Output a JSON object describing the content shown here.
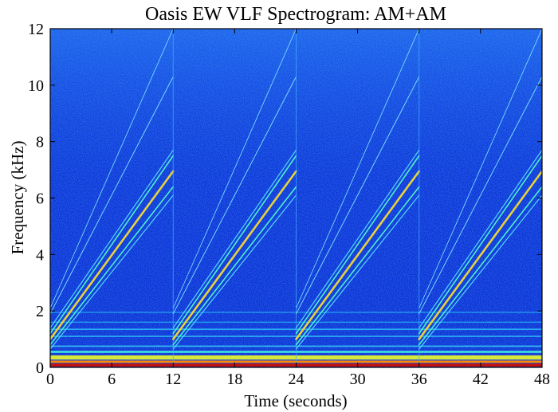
{
  "chart_data": {
    "type": "heatmap",
    "title": "Oasis EW VLF Spectrogram: AM+AM",
    "xlabel": "Time (seconds)",
    "ylabel": "Frequency (kHz)",
    "xlim": [
      0,
      48
    ],
    "ylim": [
      0,
      12
    ],
    "x_ticks": [
      "0",
      "6",
      "12",
      "18",
      "24",
      "30",
      "36",
      "42",
      "48"
    ],
    "y_ticks": [
      "0",
      "2",
      "4",
      "6",
      "8",
      "10",
      "12"
    ],
    "colormap": "jet",
    "background_color": "#0a2fd6",
    "sweep_period_s": 12,
    "sweep_starts_s": [
      0,
      12,
      24,
      36
    ],
    "sweeps": [
      {
        "f_start_khz": 1.0,
        "f_end_khz": 6.95,
        "color": "#e8d23a",
        "width": 2.6
      },
      {
        "f_start_khz": 1.2,
        "f_end_khz": 7.5,
        "color": "#4ff0c8",
        "width": 1.6
      },
      {
        "f_start_khz": 0.8,
        "f_end_khz": 6.4,
        "color": "#4ff0c8",
        "width": 1.6
      },
      {
        "f_start_khz": 1.4,
        "f_end_khz": 7.7,
        "color": "#58e0ff",
        "width": 1.1
      },
      {
        "f_start_khz": 0.65,
        "f_end_khz": 6.1,
        "color": "#58e0ff",
        "width": 1.1
      },
      {
        "f_start_khz": 1.9,
        "f_end_khz": 10.3,
        "color": "#7fe6ff",
        "width": 0.9
      },
      {
        "f_start_khz": 2.1,
        "f_end_khz": 12.0,
        "color": "#7fe6ff",
        "width": 0.8
      }
    ],
    "low_freq_bands": [
      {
        "f_khz": 0.08,
        "height_khz": 0.1,
        "color": "#c8100a"
      },
      {
        "f_khz": 0.2,
        "height_khz": 0.08,
        "color": "#ff8c00"
      },
      {
        "f_khz": 0.35,
        "height_khz": 0.15,
        "color": "#d8e83a"
      },
      {
        "f_khz": 0.55,
        "height_khz": 0.07,
        "color": "#40e8e0"
      },
      {
        "f_khz": 0.75,
        "height_khz": 0.05,
        "color": "#30b8f0"
      },
      {
        "f_khz": 1.1,
        "height_khz": 0.05,
        "color": "#2aa8f0"
      },
      {
        "f_khz": 1.35,
        "height_khz": 0.05,
        "color": "#2aa8f0"
      },
      {
        "f_khz": 1.6,
        "height_khz": 0.04,
        "color": "#2098f0"
      },
      {
        "f_khz": 1.95,
        "height_khz": 0.04,
        "color": "#2098f0"
      }
    ]
  }
}
